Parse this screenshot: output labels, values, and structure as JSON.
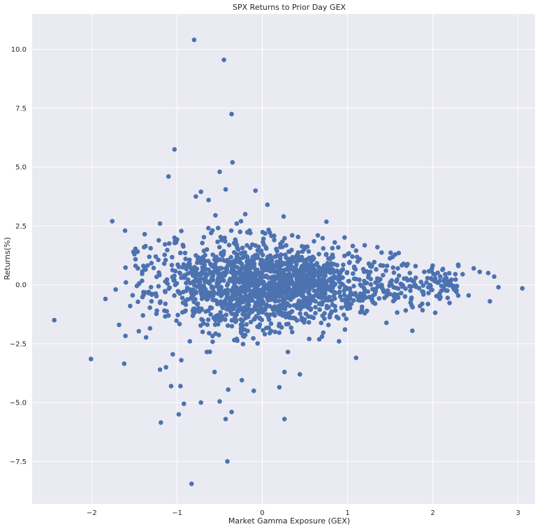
{
  "chart_data": {
    "type": "scatter",
    "title": "SPX Returns to Prior Day GEX",
    "xlabel": "Market Gamma Exposure (GEX)",
    "ylabel": "Returns(%)",
    "xlim": [
      -2.7,
      3.2
    ],
    "ylim": [
      -9.3,
      11.5
    ],
    "xticks": [
      -2,
      -1,
      0,
      1,
      2,
      3
    ],
    "xtick_labels": [
      "−2",
      "−1",
      "0",
      "1",
      "2",
      "3"
    ],
    "yticks": [
      -7.5,
      -5.0,
      -2.5,
      0.0,
      2.5,
      5.0,
      7.5,
      10.0
    ],
    "ytick_labels": [
      "−7.5",
      "−5.0",
      "−2.5",
      "0.0",
      "2.5",
      "5.0",
      "7.5",
      "10.0"
    ],
    "grid": true,
    "point_color": "#4c72b0",
    "background_color": "#eaeaf2",
    "series": [
      {
        "points": [
          [
            -0.8,
            10.4
          ],
          [
            -0.45,
            9.55
          ],
          [
            -0.36,
            7.25
          ],
          [
            -1.03,
            5.75
          ],
          [
            -0.35,
            5.2
          ],
          [
            -1.1,
            4.6
          ],
          [
            -0.5,
            4.8
          ],
          [
            -0.08,
            4.0
          ],
          [
            -0.43,
            4.05
          ],
          [
            -0.72,
            3.95
          ],
          [
            -0.78,
            3.75
          ],
          [
            -0.63,
            3.6
          ],
          [
            0.06,
            3.4
          ],
          [
            -0.55,
            2.95
          ],
          [
            -0.2,
            3.0
          ],
          [
            0.25,
            2.9
          ],
          [
            -1.76,
            2.7
          ],
          [
            -1.61,
            2.3
          ],
          [
            -1.2,
            2.6
          ],
          [
            -0.3,
            2.6
          ],
          [
            -2.44,
            -1.5
          ],
          [
            -2.01,
            -3.15
          ],
          [
            -1.62,
            -3.35
          ],
          [
            -1.84,
            -0.6
          ],
          [
            -1.68,
            -1.7
          ],
          [
            -1.72,
            -0.2
          ],
          [
            -1.46,
            0.7
          ],
          [
            -1.38,
            2.15
          ],
          [
            -1.03,
            2.0
          ],
          [
            -0.9,
            1.1
          ],
          [
            -1.19,
            -5.85
          ],
          [
            -0.98,
            -5.5
          ],
          [
            -0.92,
            -5.05
          ],
          [
            -0.83,
            -8.45
          ],
          [
            -0.43,
            -5.7
          ],
          [
            -0.41,
            -7.5
          ],
          [
            -0.5,
            -4.95
          ],
          [
            -1.07,
            -4.3
          ],
          [
            -0.96,
            -4.3
          ],
          [
            -0.72,
            -5.0
          ],
          [
            -0.36,
            -5.4
          ],
          [
            -0.24,
            -4.05
          ],
          [
            -0.1,
            -4.5
          ],
          [
            0.2,
            -4.35
          ],
          [
            0.26,
            -5.7
          ],
          [
            0.44,
            -3.8
          ],
          [
            1.1,
            -3.1
          ],
          [
            -0.56,
            -3.7
          ],
          [
            -0.4,
            -4.45
          ],
          [
            0.26,
            -3.7
          ],
          [
            1.76,
            -1.95
          ],
          [
            0.7,
            -2.2
          ],
          [
            0.97,
            -1.9
          ],
          [
            -1.2,
            -3.6
          ],
          [
            -1.13,
            -3.5
          ],
          [
            -1.05,
            -2.95
          ],
          [
            -0.65,
            -2.85
          ],
          [
            -0.95,
            -3.2
          ],
          [
            0.3,
            -2.85
          ],
          [
            0.55,
            -2.3
          ],
          [
            3.05,
            -0.15
          ],
          [
            2.77,
            -0.1
          ],
          [
            2.72,
            0.35
          ],
          [
            2.65,
            0.5
          ],
          [
            2.67,
            -0.7
          ],
          [
            2.55,
            0.55
          ],
          [
            2.48,
            0.7
          ],
          [
            2.42,
            -0.45
          ],
          [
            2.35,
            0.45
          ],
          [
            2.3,
            0.8
          ],
          [
            2.25,
            -0.2
          ],
          [
            2.2,
            0.15
          ],
          [
            2.1,
            -0.25
          ],
          [
            2.05,
            0.1
          ],
          [
            1.99,
            0.7
          ],
          [
            1.95,
            -0.35
          ],
          [
            1.9,
            0.55
          ],
          [
            1.85,
            -0.9
          ],
          [
            1.8,
            0.3
          ],
          [
            1.75,
            -0.55
          ],
          [
            1.6,
            1.35
          ],
          [
            1.35,
            1.6
          ],
          [
            1.1,
            1.45
          ],
          [
            1.3,
            -0.75
          ],
          [
            1.55,
            -0.4
          ],
          [
            1.45,
            0.6
          ],
          [
            1.25,
            0.9
          ],
          [
            1.2,
            -0.3
          ],
          [
            1.5,
            0.1
          ],
          [
            1.4,
            -0.1
          ],
          [
            0.9,
            -2.4
          ],
          [
            0.85,
            1.8
          ],
          [
            0.75,
            1.3
          ],
          [
            0.6,
            -1.4
          ],
          [
            0.5,
            1.6
          ],
          [
            0.35,
            2.1
          ],
          [
            0.15,
            -2.0
          ],
          [
            -0.15,
            2.3
          ],
          [
            -0.25,
            2.7
          ],
          [
            -0.6,
            2.2
          ],
          [
            -0.7,
            -2.0
          ],
          [
            -0.85,
            -2.4
          ],
          [
            -0.65,
            1.5
          ],
          [
            -1.3,
            -0.7
          ],
          [
            -1.5,
            1.3
          ],
          [
            -1.6,
            0.1
          ],
          [
            -1.55,
            -0.9
          ],
          [
            -1.4,
            -1.3
          ],
          [
            -1.25,
            1.2
          ],
          [
            -1.15,
            0.9
          ],
          [
            -0.95,
            0.3
          ],
          [
            -0.8,
            -1.2
          ],
          [
            -0.55,
            -1.5
          ],
          [
            -0.45,
            1.9
          ],
          [
            -0.3,
            -2.3
          ]
        ]
      }
    ]
  }
}
